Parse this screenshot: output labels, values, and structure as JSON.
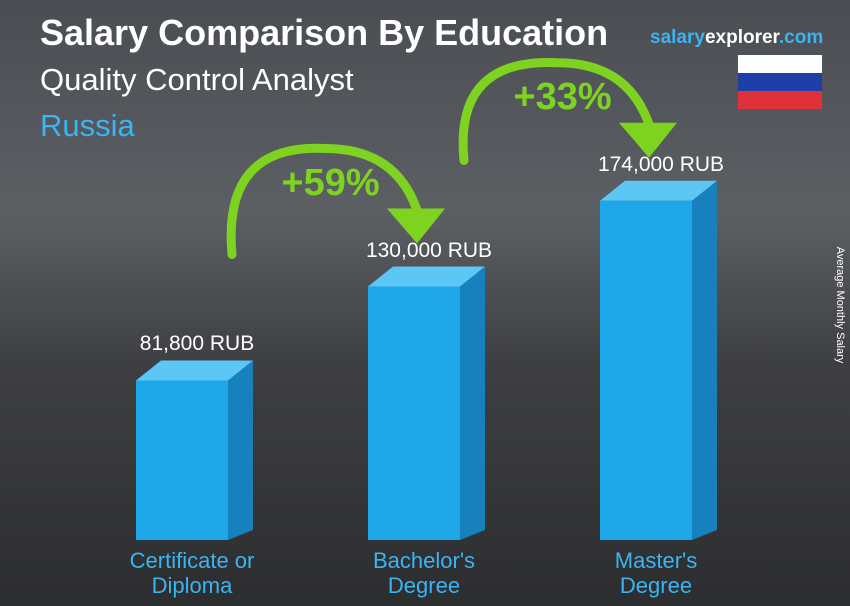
{
  "chart_data": {
    "type": "bar",
    "title": "Salary Comparison By Education",
    "subtitle": "Quality Control Analyst",
    "country": "Russia",
    "logo": [
      "salary",
      "explorer",
      ".com"
    ],
    "y_axis_label": "Average Monthly Salary",
    "categories": [
      "Certificate or\nDiploma",
      "Bachelor's\nDegree",
      "Master's\nDegree"
    ],
    "values": [
      81800,
      130000,
      174000
    ],
    "value_labels": [
      "81,800 RUB",
      "130,000 RUB",
      "174,000 RUB"
    ],
    "color": "#1ea7e8",
    "annotations": [
      {
        "text": "+59%"
      },
      {
        "text": "+33%"
      }
    ],
    "annotation_color": "#7ed321"
  }
}
